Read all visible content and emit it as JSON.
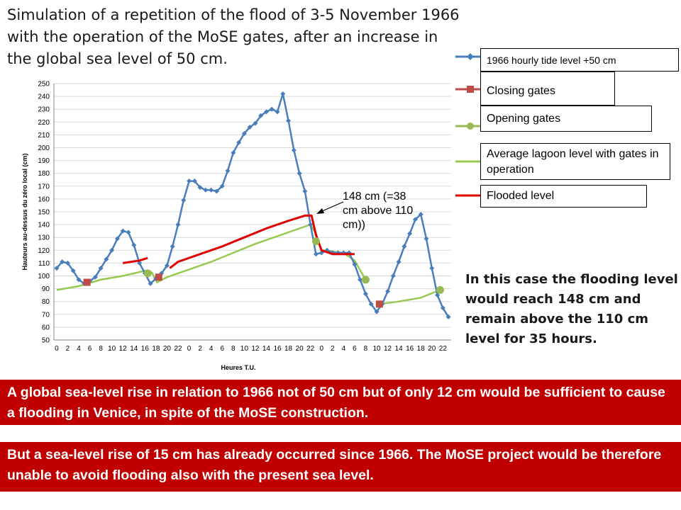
{
  "title": "Simulation of a repetition of the flood of 3-5 November 1966 with the operation of the MoSE gates, after an increase in the global sea level of 50 cm.",
  "note": "In this case the flooding level would reach 148 cm and remain above the 110 cm level for 35 hours.",
  "banner1": "A global sea-level rise in relation to 1966 not of 50 cm but of only 12 cm would be sufficient to cause a flooding in Venice, in spite of the  MoSE construction.",
  "banner2": "But a sea-level rise of 15 cm has already occurred  since 1966. The MoSE project would be therefore unable to avoid flooding also with the present sea level.",
  "annotation": "148 cm (=38 cm above 110 cm))",
  "colors": {
    "tide": "#4a7ebb",
    "closing": "#be4b48",
    "opening": "#98b954",
    "average": "#98c850",
    "flooded": "#e00000",
    "banner": "#c00000"
  },
  "legend": {
    "tide": "1966 hourly tide level +50 cm",
    "closing": "Closing gates",
    "opening": "Opening gates",
    "average": "Average lagoon level with gates in operation",
    "flooded": "Flooded level"
  },
  "chart_data": {
    "type": "line",
    "xlabel": "Heures T.U.",
    "ylabel": "Hauteurs au-dessus du zéro local  (cm)",
    "ylim": [
      50,
      250
    ],
    "ytick_step": 10,
    "x_tick_labels": [
      "0",
      "2",
      "4",
      "6",
      "8",
      "10",
      "12",
      "14",
      "16",
      "18",
      "20",
      "22",
      "0",
      "2",
      "4",
      "6",
      "8",
      "10",
      "12",
      "14",
      "16",
      "18",
      "20",
      "22",
      "0",
      "2",
      "4",
      "6",
      "8",
      "10",
      "12",
      "14",
      "16",
      "18",
      "20",
      "22"
    ],
    "hours": 72,
    "series": [
      {
        "name": "1966 hourly tide level +50 cm",
        "marker": "diamond",
        "values": [
          106,
          111,
          110,
          104,
          97,
          94,
          96,
          99,
          106,
          113,
          120,
          129,
          135,
          134,
          124,
          110,
          102,
          94,
          98,
          102,
          108,
          123,
          140,
          159,
          174,
          174,
          169,
          167,
          167,
          166,
          170,
          182,
          196,
          204,
          211,
          216,
          219,
          225,
          228,
          230,
          228,
          242,
          221,
          198,
          180,
          166,
          140,
          117,
          118,
          120,
          118,
          118,
          118,
          118,
          109,
          97,
          86,
          78,
          72,
          78,
          88,
          100,
          111,
          123,
          133,
          144,
          148,
          129,
          106,
          85,
          75,
          68
        ]
      },
      {
        "name": "Closing gates",
        "marker": "square",
        "points": [
          [
            5.5,
            95
          ],
          [
            18.5,
            99
          ],
          [
            58.5,
            78
          ]
        ]
      },
      {
        "name": "Opening gates",
        "marker": "circle",
        "points": [
          [
            16.5,
            102
          ],
          [
            47,
            127
          ],
          [
            56,
            97
          ],
          [
            69.5,
            89
          ]
        ]
      },
      {
        "name": "Average lagoon level with gates in operation",
        "marker": "none",
        "segments": [
          [
            [
              0,
              89
            ],
            [
              4,
              92
            ],
            [
              8,
              97
            ],
            [
              12,
              100
            ],
            [
              16,
              104
            ],
            [
              17.2,
              103
            ]
          ],
          [
            [
              17.2,
              103
            ],
            [
              18.2,
              95
            ],
            [
              20,
              99
            ],
            [
              24,
              105
            ],
            [
              28,
              111
            ],
            [
              32,
              118
            ],
            [
              36,
              125
            ],
            [
              40,
              131
            ],
            [
              44,
              137
            ],
            [
              46,
              140
            ],
            [
              47,
              133
            ]
          ],
          [
            [
              47,
              133
            ],
            [
              48,
              120
            ],
            [
              52,
              118
            ],
            [
              54,
              112
            ],
            [
              56,
              97
            ]
          ],
          [
            [
              58.5,
              78
            ],
            [
              62,
              80
            ],
            [
              66,
              83
            ],
            [
              69.5,
              89
            ]
          ]
        ]
      },
      {
        "name": "Flooded level",
        "marker": "none",
        "segments": [
          [
            [
              12,
              110
            ],
            [
              15,
              112
            ],
            [
              16.5,
              114
            ]
          ],
          [
            [
              20.5,
              106
            ],
            [
              22,
              111
            ],
            [
              26,
              117
            ],
            [
              30,
              123
            ],
            [
              34,
              130
            ],
            [
              38,
              137
            ],
            [
              42,
              143
            ],
            [
              45,
              147
            ],
            [
              46.2,
              147
            ],
            [
              47,
              132
            ],
            [
              48,
              120
            ],
            [
              50,
              117
            ],
            [
              54,
              117
            ]
          ]
        ]
      }
    ]
  }
}
